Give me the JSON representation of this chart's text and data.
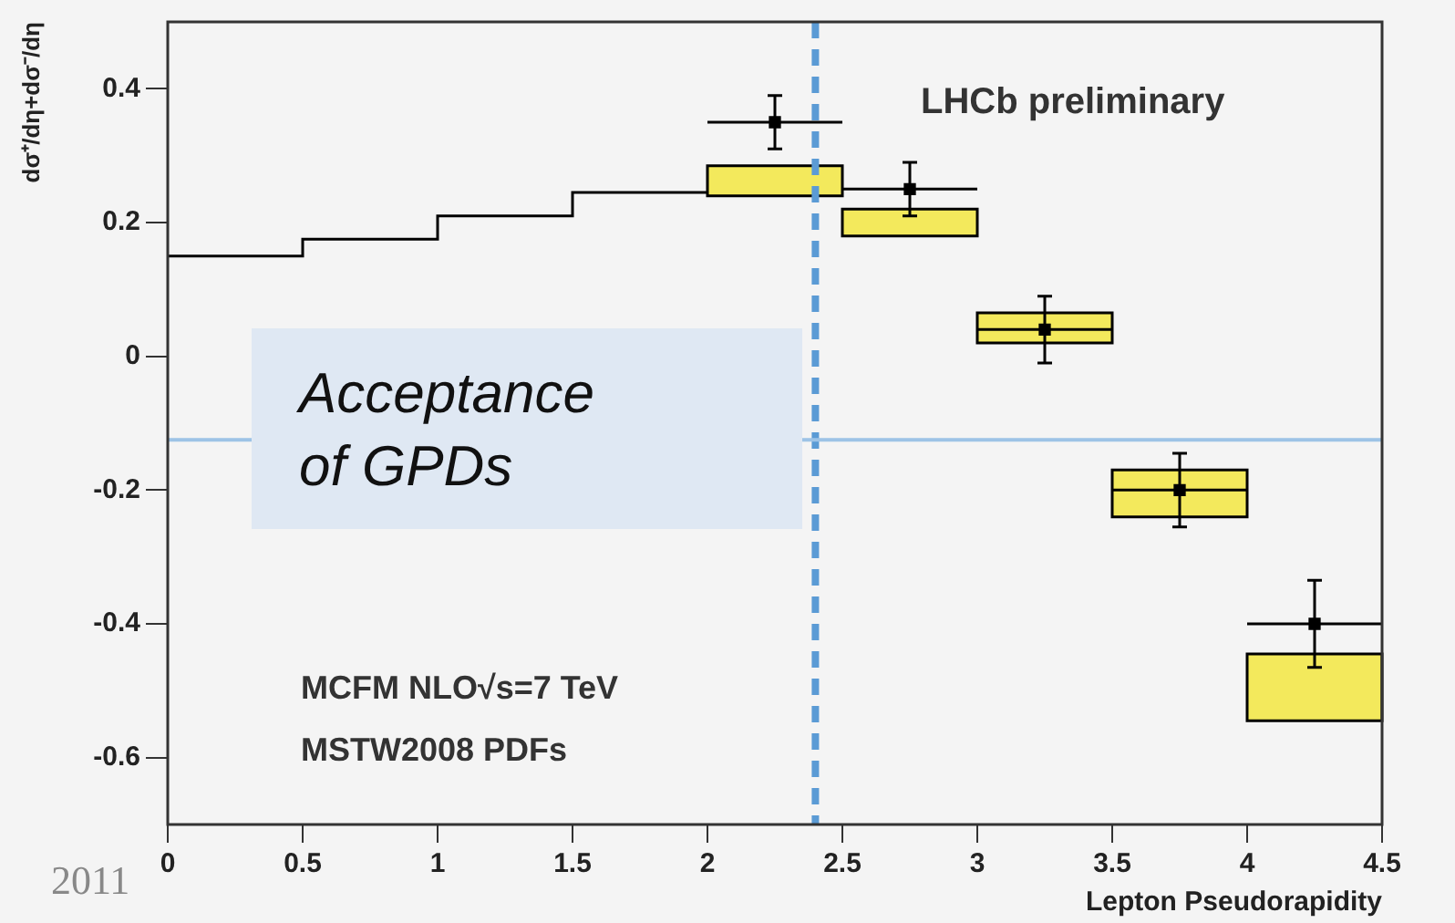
{
  "chart_data": {
    "type": "line",
    "ylabel": "dσ⁺/dη+dσ⁻/dη",
    "xlabel": "Lepton Pseudorapidity",
    "xlim": [
      0,
      4.5
    ],
    "xticks": [
      0,
      0.5,
      1,
      1.5,
      2,
      2.5,
      3,
      3.5,
      4,
      4.5
    ],
    "ylim": [
      -0.7,
      0.5
    ],
    "yticks": [
      -0.6,
      -0.4,
      -0.2,
      0,
      0.2,
      0.4
    ],
    "grid": false,
    "legend": false,
    "series": [
      {
        "type": "step",
        "color": "#000000",
        "x": [
          0,
          0.5,
          1,
          1.5,
          2
        ],
        "values": [
          0.15,
          0.175,
          0.21,
          0.245,
          0.245
        ]
      },
      {
        "type": "bar",
        "color": "#f3e95c",
        "x": [
          2.25,
          2.75,
          3.25,
          3.75,
          4.25
        ],
        "base": [
          0.24,
          0.18,
          0.02,
          -0.24,
          -0.545
        ],
        "values": [
          0.045,
          0.04,
          0.045,
          0.07,
          0.1
        ]
      },
      {
        "type": "scatter",
        "color": "#000000",
        "marker": "square",
        "x": [
          2.25,
          2.75,
          3.25,
          3.75,
          4.25
        ],
        "values": [
          0.35,
          0.25,
          0.04,
          -0.2,
          -0.4
        ],
        "errors": [
          0.04,
          0.04,
          0.05,
          0.055,
          0.065
        ],
        "xerrors": [
          0.25,
          0.25,
          0.25,
          0.25,
          0.25
        ]
      }
    ],
    "ref_lines": [
      {
        "axis": "x",
        "value": 2.4,
        "color": "#5b9bd5",
        "line_style": "dashed"
      },
      {
        "axis": "y",
        "value": -0.125,
        "color": "#9dc3e6",
        "line_style": "solid"
      }
    ],
    "annotations": [
      "LHCb preliminary",
      "Acceptance\nof GPDs",
      "MCFM NLO√s=7 TeV",
      "MSTW2008 PDFs",
      "2011"
    ]
  }
}
